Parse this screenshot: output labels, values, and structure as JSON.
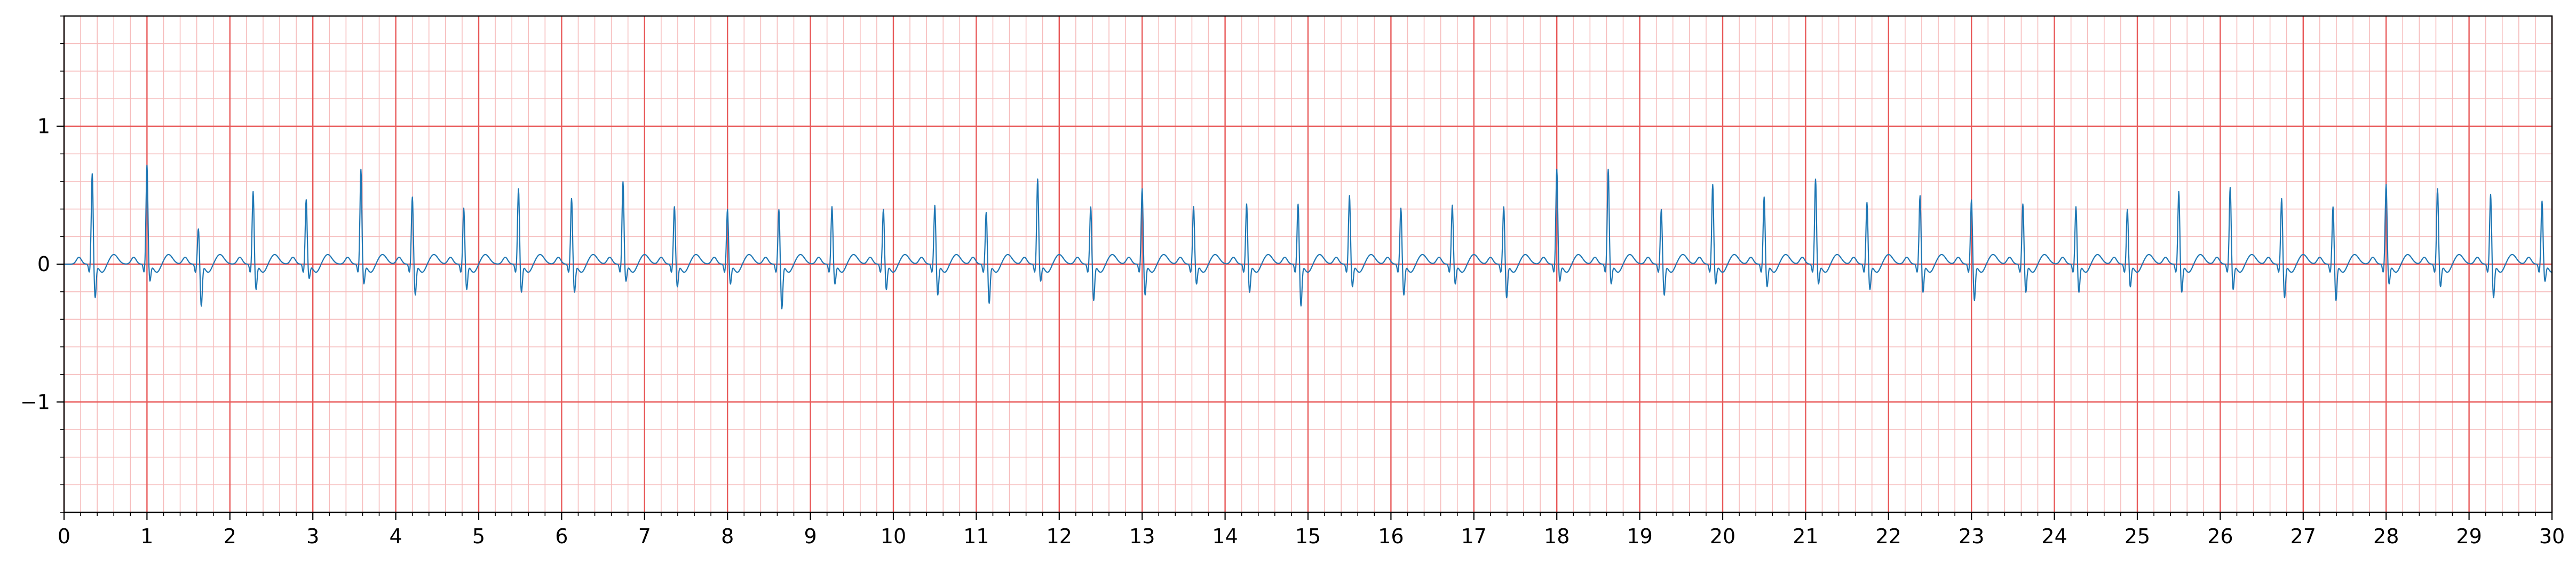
{
  "chart_data": {
    "type": "line",
    "title": "",
    "xlabel": "",
    "ylabel": "",
    "xlim": [
      0,
      30
    ],
    "ylim": [
      -1.8,
      1.8
    ],
    "x_ticks": [
      0,
      1,
      2,
      3,
      4,
      5,
      6,
      7,
      8,
      9,
      10,
      11,
      12,
      13,
      14,
      15,
      16,
      17,
      18,
      19,
      20,
      21,
      22,
      23,
      24,
      25,
      26,
      27,
      28,
      29,
      30
    ],
    "x_tick_labels": [
      "0",
      "1",
      "2",
      "3",
      "4",
      "5",
      "6",
      "7",
      "8",
      "9",
      "10",
      "11",
      "12",
      "13",
      "14",
      "15",
      "16",
      "17",
      "18",
      "19",
      "20",
      "21",
      "22",
      "23",
      "24",
      "25",
      "26",
      "27",
      "28",
      "29",
      "30"
    ],
    "y_ticks": [
      -1,
      0,
      1
    ],
    "y_tick_labels": [
      "−1",
      "0",
      "1"
    ],
    "grid": {
      "major_x_step": 1,
      "minor_x_step": 0.2,
      "major_y_step": 1,
      "minor_y_step": 0.2,
      "major_color": "#e85a5a",
      "minor_color": "#f6bcbc"
    },
    "series_color": "#1f77b4",
    "series": [
      {
        "beats_t": [
          0.34,
          1.0,
          1.62,
          2.28,
          2.92,
          3.58,
          4.2,
          4.82,
          5.48,
          6.12,
          6.74,
          7.36,
          8.0,
          8.62,
          9.26,
          9.88,
          10.5,
          11.12,
          11.74,
          12.38,
          13.0,
          13.62,
          14.26,
          14.88,
          15.5,
          16.12,
          16.74,
          17.36,
          18.0,
          18.62,
          19.26,
          19.88,
          20.5,
          21.12,
          21.74,
          22.38,
          23.0,
          23.62,
          24.26,
          24.88,
          25.5,
          26.12,
          26.74,
          27.36,
          28.0,
          28.62,
          29.26,
          29.88
        ],
        "beats_amp": [
          0.66,
          0.72,
          0.26,
          0.53,
          0.47,
          0.69,
          0.49,
          0.41,
          0.55,
          0.48,
          0.6,
          0.42,
          0.4,
          0.4,
          0.42,
          0.4,
          0.43,
          0.38,
          0.62,
          0.42,
          0.55,
          0.42,
          0.44,
          0.44,
          0.5,
          0.41,
          0.43,
          0.42,
          0.69,
          0.69,
          0.4,
          0.58,
          0.49,
          0.62,
          0.45,
          0.5,
          0.47,
          0.44,
          0.42,
          0.4,
          0.53,
          0.56,
          0.48,
          0.42,
          0.58,
          0.55,
          0.51,
          0.46
        ],
        "s_depth": [
          0.24,
          0.12,
          0.3,
          0.18,
          0.1,
          0.14,
          0.22,
          0.18,
          0.2,
          0.2,
          0.12,
          0.16,
          0.14,
          0.32,
          0.14,
          0.18,
          0.22,
          0.28,
          0.12,
          0.26,
          0.22,
          0.14,
          0.2,
          0.3,
          0.16,
          0.22,
          0.14,
          0.24,
          0.12,
          0.14,
          0.22,
          0.14,
          0.16,
          0.14,
          0.18,
          0.2,
          0.26,
          0.2,
          0.2,
          0.16,
          0.2,
          0.18,
          0.24,
          0.26,
          0.14,
          0.16,
          0.24,
          0.12
        ]
      }
    ]
  }
}
